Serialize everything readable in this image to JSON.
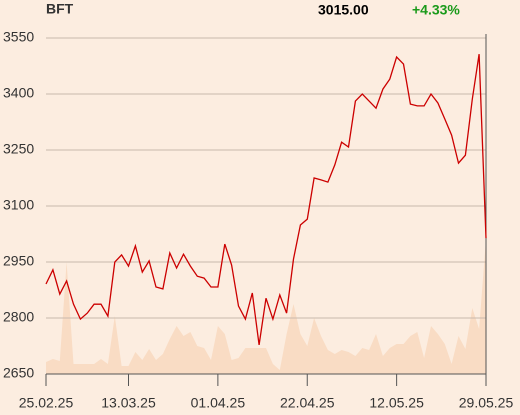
{
  "header": {
    "symbol": "BFT",
    "price": "3015.00",
    "change": "+4.33%"
  },
  "chart_data": {
    "type": "line",
    "categories": [
      "25.02.25",
      null,
      null,
      null,
      null,
      null,
      null,
      null,
      null,
      null,
      null,
      null,
      "13.03.25",
      null,
      null,
      null,
      null,
      null,
      null,
      null,
      null,
      null,
      null,
      null,
      null,
      "01.04.25",
      null,
      null,
      null,
      null,
      null,
      null,
      null,
      null,
      null,
      null,
      null,
      null,
      "22.04.25",
      null,
      null,
      null,
      null,
      null,
      null,
      null,
      null,
      null,
      null,
      null,
      null,
      "12.05.25",
      null,
      null,
      null,
      null,
      null,
      null,
      null,
      null,
      null,
      null,
      null,
      null,
      "29.05.25"
    ],
    "series": [
      {
        "name": "price",
        "color": "#cc0000",
        "values": [
          2891,
          2929,
          2864,
          2899,
          2837,
          2797,
          2813,
          2837,
          2837,
          2805,
          2950,
          2969,
          2939,
          2993,
          2923,
          2953,
          2883,
          2878,
          2974,
          2934,
          2971,
          2939,
          2912,
          2907,
          2883,
          2883,
          2998,
          2942,
          2832,
          2797,
          2867,
          2728,
          2853,
          2797,
          2862,
          2813,
          2958,
          3049,
          3065,
          3175,
          3170,
          3164,
          3210,
          3271,
          3258,
          3381,
          3400,
          3381,
          3362,
          3413,
          3440,
          3499,
          3480,
          3373,
          3368,
          3368,
          3400,
          3376,
          3333,
          3290,
          3215,
          3236,
          3386,
          3507,
          3014
        ]
      },
      {
        "name": "volume",
        "color": "#f9dcc4",
        "axis": "y2",
        "values": [
          12,
          15,
          13,
          112,
          10,
          10,
          10,
          10,
          15,
          10,
          58,
          8,
          8,
          22,
          14,
          25,
          14,
          20,
          35,
          48,
          38,
          42,
          28,
          26,
          14,
          48,
          40,
          14,
          16,
          26,
          26,
          26,
          26,
          10,
          4,
          40,
          70,
          40,
          28,
          56,
          38,
          24,
          20,
          24,
          22,
          18,
          26,
          24,
          40,
          18,
          26,
          30,
          30,
          38,
          42,
          16,
          48,
          40,
          30,
          10,
          38,
          25,
          66,
          45,
          135
        ]
      }
    ],
    "ylim": [
      2650,
      3550
    ],
    "yticks": [
      2650,
      2800,
      2950,
      3100,
      3250,
      3400,
      3550
    ],
    "y2lim": [
      0,
      336
    ],
    "grid": true
  }
}
